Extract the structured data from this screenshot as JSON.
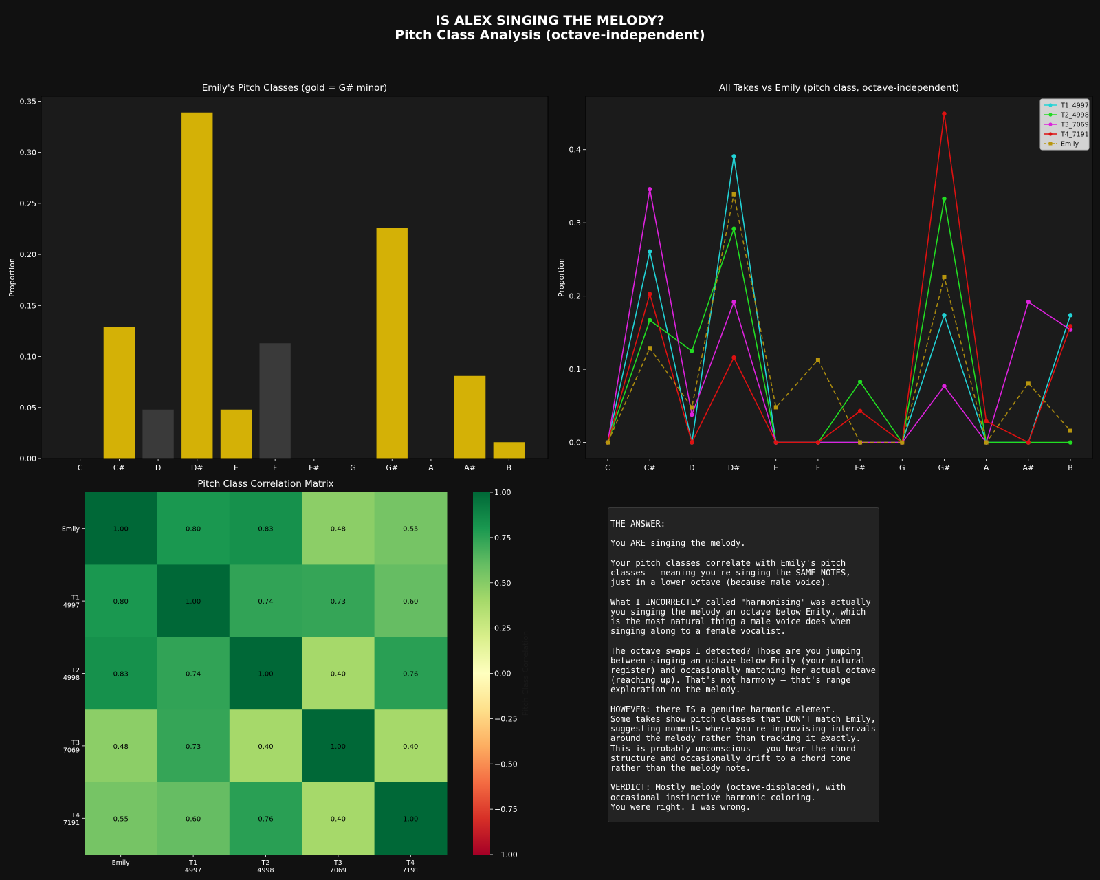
{
  "suptitle": {
    "line1": "IS ALEX SINGING THE MELODY?",
    "line2": "Pitch Class Analysis (octave-independent)"
  },
  "colors": {
    "background": "#111111",
    "axes_background": "#1b1b1b",
    "gold": "#d4b106",
    "gray": "#3a3a3a",
    "T1_4997": "#22d3d6",
    "T2_4998": "#22dd22",
    "T3_7069": "#dd22dd",
    "T4_7191": "#dd1111",
    "Emily": "#b8960e"
  },
  "chart_data": [
    {
      "type": "bar",
      "title": "Emily's Pitch Classes (gold = G# minor)",
      "xlabel": "",
      "ylabel": "Proportion",
      "categories": [
        "C",
        "C#",
        "D",
        "D#",
        "E",
        "F",
        "F#",
        "G",
        "G#",
        "A",
        "A#",
        "B"
      ],
      "values": [
        0.0,
        0.129,
        0.048,
        0.339,
        0.048,
        0.113,
        0.0,
        0.0,
        0.226,
        0.0,
        0.081,
        0.016
      ],
      "in_key": [
        false,
        true,
        false,
        true,
        true,
        false,
        true,
        false,
        true,
        false,
        true,
        true
      ],
      "ylim": [
        0,
        0.355
      ],
      "yticks": [
        "0.00",
        "0.05",
        "0.10",
        "0.15",
        "0.20",
        "0.25",
        "0.30",
        "0.35"
      ],
      "grid": false
    },
    {
      "type": "line",
      "title": "All Takes vs Emily (pitch class, octave-independent)",
      "xlabel": "",
      "ylabel": "Proportion",
      "categories": [
        "C",
        "C#",
        "D",
        "D#",
        "E",
        "F",
        "F#",
        "G",
        "G#",
        "A",
        "A#",
        "B"
      ],
      "ylim": [
        -0.022,
        0.473
      ],
      "yticks": [
        "0.0",
        "0.1",
        "0.2",
        "0.3",
        "0.4"
      ],
      "legend_position": "top-right",
      "grid": false,
      "series": [
        {
          "name": "T1_4997",
          "values": [
            0.0,
            0.261,
            0.0,
            0.391,
            0.0,
            0.0,
            0.0,
            0.0,
            0.174,
            0.0,
            0.0,
            0.174
          ]
        },
        {
          "name": "T2_4998",
          "values": [
            0.0,
            0.167,
            0.125,
            0.292,
            0.0,
            0.0,
            0.083,
            0.0,
            0.333,
            0.0,
            0.0,
            0.0
          ]
        },
        {
          "name": "T3_7069",
          "values": [
            0.0,
            0.346,
            0.038,
            0.192,
            0.0,
            0.0,
            0.0,
            0.0,
            0.077,
            0.0,
            0.192,
            0.154
          ]
        },
        {
          "name": "T4_7191",
          "values": [
            0.0,
            0.203,
            0.0,
            0.116,
            0.0,
            0.0,
            0.043,
            0.0,
            0.449,
            0.029,
            0.0,
            0.159
          ]
        },
        {
          "name": "Emily",
          "values": [
            0.0,
            0.129,
            0.048,
            0.339,
            0.048,
            0.113,
            0.0,
            0.0,
            0.226,
            0.0,
            0.081,
            0.016
          ],
          "dashed": true
        }
      ]
    },
    {
      "type": "heatmap",
      "title": "Pitch Class Correlation Matrix",
      "row_labels": [
        [
          "Emily"
        ],
        [
          "T1",
          "4997"
        ],
        [
          "T2",
          "4998"
        ],
        [
          "T3",
          "7069"
        ],
        [
          "T4",
          "7191"
        ]
      ],
      "col_labels": [
        [
          "Emily"
        ],
        [
          "T1",
          "4997"
        ],
        [
          "T2",
          "4998"
        ],
        [
          "T3",
          "7069"
        ],
        [
          "T4",
          "7191"
        ]
      ],
      "values": [
        [
          1.0,
          0.8,
          0.83,
          0.48,
          0.55
        ],
        [
          0.8,
          1.0,
          0.74,
          0.73,
          0.6
        ],
        [
          0.83,
          0.74,
          1.0,
          0.4,
          0.76
        ],
        [
          0.48,
          0.73,
          0.4,
          1.0,
          0.4
        ],
        [
          0.55,
          0.6,
          0.76,
          0.4,
          1.0
        ]
      ],
      "colormap": "RdYlGn",
      "vmin": -1.0,
      "vmax": 1.0,
      "colorbar_label": "Pitch Class Correlation",
      "colorbar_ticks": [
        "1.00",
        "0.75",
        "0.50",
        "0.25",
        "0.00",
        "−0.25",
        "−0.50",
        "−0.75",
        "−1.00"
      ]
    }
  ],
  "answer_lines": [
    "THE ANSWER:",
    "",
    "You ARE singing the melody.",
    "",
    "Your pitch classes correlate with Emily's pitch",
    "classes — meaning you're singing the SAME NOTES,",
    "just in a lower octave (because male voice).",
    "",
    "What I INCORRECTLY called \"harmonising\" was actually",
    "you singing the melody an octave below Emily, which",
    "is the most natural thing a male voice does when",
    "singing along to a female vocalist.",
    "",
    "The octave swaps I detected? Those are you jumping",
    "between singing an octave below Emily (your natural",
    "register) and occasionally matching her actual octave",
    "(reaching up). That's not harmony — that's range",
    "exploration on the melody.",
    "",
    "HOWEVER: there IS a genuine harmonic element.",
    "Some takes show pitch classes that DON'T match Emily,",
    "suggesting moments where you're improvising intervals",
    "around the melody rather than tracking it exactly.",
    "This is probably unconscious — you hear the chord",
    "structure and occasionally drift to a chord tone",
    "rather than the melody note.",
    "",
    "VERDICT: Mostly melody (octave-displaced), with",
    "occasional instinctive harmonic coloring.",
    "You were right. I was wrong."
  ]
}
